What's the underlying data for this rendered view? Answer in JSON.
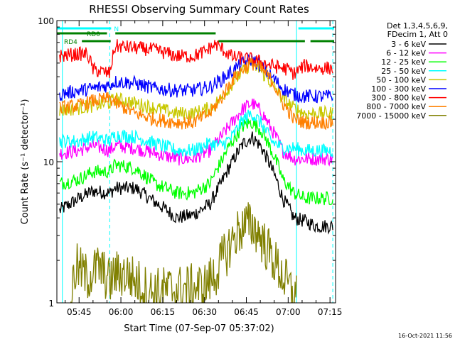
{
  "chart_data": {
    "type": "line",
    "title": "RHESSI Observing Summary Count Rates",
    "xlabel": "Start Time (07-Sep-07 05:37:02)",
    "ylabel": "Count Rate (s⁻¹ detector⁻¹)",
    "y_scale": "log",
    "ylim": [
      1,
      100
    ],
    "xlim": [
      "05:37:02",
      "07:17:00"
    ],
    "x_ticks": [
      "05:45",
      "06:00",
      "06:15",
      "06:30",
      "06:45",
      "07:00",
      "07:15"
    ],
    "y_ticks": [
      "1",
      "10",
      "100"
    ],
    "legend_header": [
      "Det 1,3,4,5,6,9,",
      "FDecim 1, Att 0"
    ],
    "legend_position": "right",
    "timestamp": "16-Oct-2021 11:56",
    "flags": [
      {
        "label": "N",
        "color": "#00ffff",
        "spans": [
          [
            "05:37:02",
            "05:56:30"
          ],
          [
            "07:03:40",
            "07:16:30"
          ]
        ]
      },
      {
        "label": "RD0",
        "color": "#008000",
        "spans": [
          [
            "05:37:02",
            "05:55:00"
          ],
          [
            "05:58:00",
            "06:34:00"
          ]
        ]
      },
      {
        "label": "RD4",
        "color": "#008000",
        "spans": [
          [
            "05:46:00",
            "05:56:20"
          ],
          [
            "06:35:00",
            "07:06:00"
          ],
          [
            "07:08:00",
            "07:16:30"
          ]
        ]
      }
    ],
    "vlines": [
      {
        "time": "05:39:00",
        "color": "#00ffff",
        "style": "solid"
      },
      {
        "time": "05:56:00",
        "color": "#00ffff",
        "style": "dashed"
      },
      {
        "time": "07:03:00",
        "color": "#00ffff",
        "style": "solid"
      },
      {
        "time": "07:16:00",
        "color": "#00ffff",
        "style": "dashed"
      }
    ],
    "series": [
      {
        "name": "3 - 6 keV",
        "color": "#000000",
        "points": [
          [
            "05:38:00",
            4.5
          ],
          [
            "05:45:00",
            5.5
          ],
          [
            "05:50:00",
            6.2
          ],
          [
            "05:56:00",
            6.0
          ],
          [
            "05:58:00",
            6.5
          ],
          [
            "06:05:00",
            6.5
          ],
          [
            "06:12:00",
            5.2
          ],
          [
            "06:20:00",
            4.0
          ],
          [
            "06:26:00",
            4.2
          ],
          [
            "06:32:00",
            5.0
          ],
          [
            "06:36:00",
            7.0
          ],
          [
            "06:40:00",
            10.0
          ],
          [
            "06:44:00",
            13.5
          ],
          [
            "06:47:00",
            15.0
          ],
          [
            "06:50:00",
            13.0
          ],
          [
            "06:54:00",
            9.0
          ],
          [
            "06:58:00",
            5.5
          ],
          [
            "07:02:00",
            4.0
          ],
          [
            "07:06:00",
            3.8
          ],
          [
            "07:10:00",
            3.5
          ],
          [
            "07:16:00",
            3.5
          ]
        ]
      },
      {
        "name": "6 - 12 keV",
        "color": "#ff00ff",
        "points": [
          [
            "05:38:00",
            11.5
          ],
          [
            "05:45:00",
            12.0
          ],
          [
            "05:50:00",
            13.0
          ],
          [
            "05:56:00",
            12.0
          ],
          [
            "05:58:00",
            13.0
          ],
          [
            "06:05:00",
            12.5
          ],
          [
            "06:12:00",
            11.5
          ],
          [
            "06:20:00",
            10.5
          ],
          [
            "06:26:00",
            10.5
          ],
          [
            "06:32:00",
            12.0
          ],
          [
            "06:36:00",
            15.0
          ],
          [
            "06:40:00",
            19.0
          ],
          [
            "06:44:00",
            24.0
          ],
          [
            "06:47:00",
            26.0
          ],
          [
            "06:50:00",
            23.0
          ],
          [
            "06:54:00",
            17.0
          ],
          [
            "06:58:00",
            12.0
          ],
          [
            "07:02:00",
            10.5
          ],
          [
            "07:06:00",
            10.5
          ],
          [
            "07:10:00",
            10.5
          ],
          [
            "07:16:00",
            10.5
          ]
        ]
      },
      {
        "name": "12 - 25 keV",
        "color": "#00ff00",
        "points": [
          [
            "05:38:00",
            7.0
          ],
          [
            "05:45:00",
            7.5
          ],
          [
            "05:50:00",
            8.5
          ],
          [
            "05:56:00",
            8.5
          ],
          [
            "05:58:00",
            9.5
          ],
          [
            "06:05:00",
            9.0
          ],
          [
            "06:12:00",
            7.0
          ],
          [
            "06:20:00",
            6.0
          ],
          [
            "06:26:00",
            6.0
          ],
          [
            "06:32:00",
            7.0
          ],
          [
            "06:36:00",
            10.0
          ],
          [
            "06:40:00",
            14.0
          ],
          [
            "06:44:00",
            18.0
          ],
          [
            "06:47:00",
            19.0
          ],
          [
            "06:50:00",
            17.0
          ],
          [
            "06:54:00",
            12.0
          ],
          [
            "06:58:00",
            7.5
          ],
          [
            "07:02:00",
            6.0
          ],
          [
            "07:06:00",
            5.5
          ],
          [
            "07:10:00",
            5.5
          ],
          [
            "07:16:00",
            5.5
          ]
        ]
      },
      {
        "name": "25 - 50 keV",
        "color": "#00ffff",
        "points": [
          [
            "05:38:00",
            14.0
          ],
          [
            "05:45:00",
            14.0
          ],
          [
            "05:50:00",
            15.0
          ],
          [
            "05:56:00",
            14.0
          ],
          [
            "05:58:00",
            15.5
          ],
          [
            "06:05:00",
            15.0
          ],
          [
            "06:12:00",
            13.5
          ],
          [
            "06:20:00",
            12.0
          ],
          [
            "06:26:00",
            12.0
          ],
          [
            "06:32:00",
            13.5
          ],
          [
            "06:36:00",
            13.0
          ],
          [
            "06:40:00",
            15.0
          ],
          [
            "06:44:00",
            20.0
          ],
          [
            "06:47:00",
            22.0
          ],
          [
            "06:50:00",
            19.0
          ],
          [
            "06:54:00",
            14.0
          ],
          [
            "06:58:00",
            12.5
          ],
          [
            "07:02:00",
            12.5
          ],
          [
            "07:06:00",
            12.0
          ],
          [
            "07:10:00",
            12.0
          ],
          [
            "07:16:00",
            12.0
          ]
        ]
      },
      {
        "name": "50 - 100 keV",
        "color": "#c8c800",
        "points": [
          [
            "05:38:00",
            23.0
          ],
          [
            "05:45:00",
            24.0
          ],
          [
            "05:50:00",
            25.0
          ],
          [
            "05:56:00",
            26.0
          ],
          [
            "05:58:00",
            28.0
          ],
          [
            "06:05:00",
            26.0
          ],
          [
            "06:12:00",
            24.0
          ],
          [
            "06:20:00",
            22.0
          ],
          [
            "06:26:00",
            22.0
          ],
          [
            "06:32:00",
            24.0
          ],
          [
            "06:36:00",
            28.0
          ],
          [
            "06:40:00",
            36.0
          ],
          [
            "06:44:00",
            44.0
          ],
          [
            "06:47:00",
            50.0
          ],
          [
            "06:50:00",
            44.0
          ],
          [
            "06:54:00",
            36.0
          ],
          [
            "06:58:00",
            28.0
          ],
          [
            "07:02:00",
            24.0
          ],
          [
            "07:06:00",
            22.0
          ],
          [
            "07:10:00",
            22.0
          ],
          [
            "07:16:00",
            22.0
          ]
        ]
      },
      {
        "name": "100 - 300 keV",
        "color": "#0000ff",
        "points": [
          [
            "05:38:00",
            30.0
          ],
          [
            "05:45:00",
            32.0
          ],
          [
            "05:50:00",
            33.0
          ],
          [
            "05:56:00",
            35.0
          ],
          [
            "05:58:00",
            37.0
          ],
          [
            "06:05:00",
            36.0
          ],
          [
            "06:12:00",
            33.0
          ],
          [
            "06:20:00",
            32.0
          ],
          [
            "06:26:00",
            32.0
          ],
          [
            "06:32:00",
            34.0
          ],
          [
            "06:36:00",
            38.0
          ],
          [
            "06:40:00",
            44.0
          ],
          [
            "06:44:00",
            50.0
          ],
          [
            "06:47:00",
            53.0
          ],
          [
            "06:50:00",
            48.0
          ],
          [
            "06:54:00",
            40.0
          ],
          [
            "06:58:00",
            33.0
          ],
          [
            "07:02:00",
            30.0
          ],
          [
            "07:06:00",
            29.0
          ],
          [
            "07:10:00",
            29.0
          ],
          [
            "07:16:00",
            29.0
          ]
        ]
      },
      {
        "name": "300 - 800 keV",
        "color": "#ff0000",
        "points": [
          [
            "05:38:00",
            56.0
          ],
          [
            "05:45:00",
            58.0
          ],
          [
            "05:48:00",
            58.0
          ],
          [
            "05:50:00",
            45.0
          ],
          [
            "05:56:00",
            42.0
          ],
          [
            "05:58:00",
            66.0
          ],
          [
            "06:05:00",
            64.0
          ],
          [
            "06:12:00",
            62.0
          ],
          [
            "06:20:00",
            56.0
          ],
          [
            "06:26:00",
            56.0
          ],
          [
            "06:30:00",
            60.0
          ],
          [
            "06:34:00",
            68.0
          ],
          [
            "06:40:00",
            55.0
          ],
          [
            "06:47:00",
            53.0
          ],
          [
            "06:54:00",
            48.0
          ],
          [
            "07:00:00",
            45.0
          ],
          [
            "07:02:00",
            42.0
          ],
          [
            "07:06:00",
            48.0
          ],
          [
            "07:10:00",
            46.0
          ],
          [
            "07:16:00",
            46.0
          ]
        ]
      },
      {
        "name": "800 - 7000 keV",
        "color": "#ff8000",
        "points": [
          [
            "05:38:00",
            24.0
          ],
          [
            "05:45:00",
            25.0
          ],
          [
            "05:50:00",
            27.0
          ],
          [
            "05:56:00",
            28.0
          ],
          [
            "05:58:00",
            26.0
          ],
          [
            "06:05:00",
            22.0
          ],
          [
            "06:12:00",
            20.0
          ],
          [
            "06:20:00",
            19.0
          ],
          [
            "06:26:00",
            19.0
          ],
          [
            "06:32:00",
            22.0
          ],
          [
            "06:36:00",
            28.0
          ],
          [
            "06:40:00",
            38.0
          ],
          [
            "06:44:00",
            46.0
          ],
          [
            "06:47:00",
            50.0
          ],
          [
            "06:50:00",
            46.0
          ],
          [
            "06:54:00",
            38.0
          ],
          [
            "06:58:00",
            26.0
          ],
          [
            "07:02:00",
            20.0
          ],
          [
            "07:06:00",
            19.0
          ],
          [
            "07:10:00",
            19.0
          ],
          [
            "07:16:00",
            19.0
          ]
        ]
      },
      {
        "name": "7000 - 15000 keV",
        "color": "#808000",
        "points": [
          [
            "05:42:00",
            1.1
          ],
          [
            "05:44:00",
            1.8
          ],
          [
            "05:48:00",
            1.5
          ],
          [
            "05:52:00",
            1.8
          ],
          [
            "05:56:00",
            1.4
          ],
          [
            "05:58:00",
            1.6
          ],
          [
            "06:02:00",
            1.6
          ],
          [
            "06:06:00",
            1.4
          ],
          [
            "06:10:00",
            1.2
          ],
          [
            "06:30:00",
            1.3
          ],
          [
            "06:34:00",
            1.6
          ],
          [
            "06:38:00",
            2.3
          ],
          [
            "06:42:00",
            3.2
          ],
          [
            "06:45:00",
            3.6
          ],
          [
            "06:48:00",
            3.4
          ],
          [
            "06:52:00",
            2.5
          ],
          [
            "06:56:00",
            1.8
          ],
          [
            "07:00:00",
            1.3
          ],
          [
            "07:03:00",
            1.1
          ]
        ]
      }
    ]
  }
}
